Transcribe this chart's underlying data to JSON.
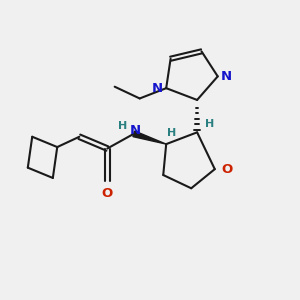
{
  "bg_color": "#f0f0f0",
  "bond_color": "#1a1a1a",
  "bond_width": 1.5,
  "atom_colors": {
    "N": "#1414cc",
    "O": "#cc2200",
    "H": "#2a8080",
    "C": "#1a1a1a"
  },
  "font_size_atom": 9.5,
  "font_size_H": 8.0,
  "fig_width": 3.0,
  "fig_height": 3.0,
  "dpi": 100,
  "xlim": [
    0,
    10
  ],
  "ylim": [
    0,
    10
  ]
}
